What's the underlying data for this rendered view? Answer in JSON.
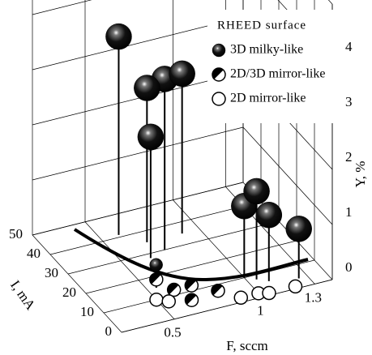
{
  "chart_data": {
    "type": "scatter3d",
    "x_label": "F, sccm",
    "y_label": "I, mA",
    "z_label": "Y, %",
    "legend_title": "RHEED surface",
    "legend": "upper right",
    "grid": true,
    "xlim": [
      0.2,
      1.4
    ],
    "xticks": [
      0.5,
      1,
      1.3
    ],
    "ylim": [
      0,
      50
    ],
    "yticks": [
      0,
      10,
      20,
      30,
      40,
      50
    ],
    "zlim": [
      0,
      5
    ],
    "zticks": [
      0,
      1,
      2,
      3,
      4
    ],
    "series": [
      {
        "name": "3D milky-like",
        "color": "#000000",
        "style": "filled",
        "x": [
          0.6,
          0.75,
          0.7,
          0.65,
          0.9,
          1.0,
          1.05,
          1.1,
          1.25,
          0.6
        ],
        "y": [
          41,
          30,
          35,
          28,
          35,
          10,
          8,
          6,
          4,
          20
        ],
        "z": [
          3.6,
          3.1,
          2.8,
          2.2,
          2.9,
          1.3,
          1.6,
          1.2,
          0.9,
          0.2
        ]
      },
      {
        "name": "2D/3D mirror-like",
        "color": "#000000",
        "style": "half",
        "x": [
          0.55,
          0.6,
          0.7,
          0.8,
          0.65
        ],
        "y": [
          15,
          10,
          10,
          5,
          5
        ],
        "z": [
          0.15,
          0.1,
          0.1,
          0.1,
          0.05
        ]
      },
      {
        "name": "2D mirror-like",
        "color": "#ffffff",
        "style": "open",
        "x": [
          0.9,
          1.0,
          1.05,
          1.2,
          0.5,
          0.55
        ],
        "y": [
          2,
          2,
          1,
          1,
          10,
          8
        ],
        "z": [
          0,
          0,
          0,
          0,
          0,
          0
        ]
      }
    ]
  }
}
